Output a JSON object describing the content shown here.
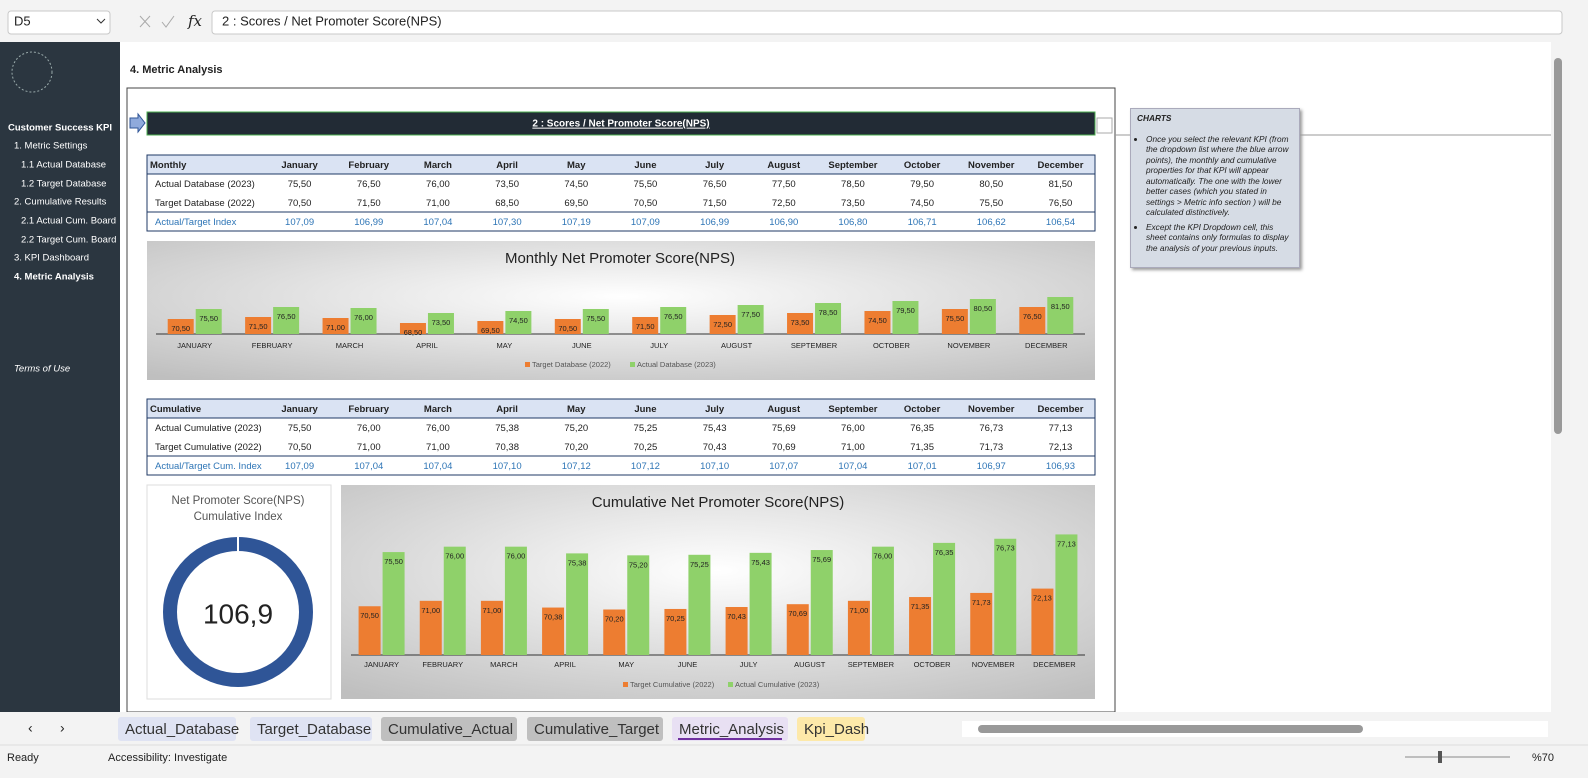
{
  "name_box": "D5",
  "formula_icon": "fx",
  "formula": "2 : Scores / Net Promoter Score(NPS)",
  "sidebar": {
    "title": "Customer Success KPI",
    "items": [
      "1. Metric Settings",
      "1.1 Actual Database",
      "1.2 Target Database",
      "2. Cumulative Results",
      "2.1 Actual Cum. Board",
      "2.2 Target Cum. Board",
      "3. KPI Dashboard",
      "4. Metric Analysis"
    ],
    "footer": "Terms of Use"
  },
  "page_title": "4. Metric Analysis",
  "monthly_table": {
    "header": [
      "Monthly",
      "January",
      "February",
      "March",
      "April",
      "May",
      "June",
      "July",
      "August",
      "September",
      "October",
      "November",
      "December"
    ],
    "rows": [
      [
        "Actual Database (2023)",
        "75,50",
        "76,50",
        "76,00",
        "73,50",
        "74,50",
        "75,50",
        "76,50",
        "77,50",
        "78,50",
        "79,50",
        "80,50",
        "81,50"
      ],
      [
        "Target Database (2022)",
        "70,50",
        "71,50",
        "71,00",
        "68,50",
        "69,50",
        "70,50",
        "71,50",
        "72,50",
        "73,50",
        "74,50",
        "75,50",
        "76,50"
      ],
      [
        "Actual/Target Index",
        "107,09",
        "106,99",
        "107,04",
        "107,30",
        "107,19",
        "107,09",
        "106,99",
        "106,90",
        "106,80",
        "106,71",
        "106,62",
        "106,54"
      ]
    ]
  },
  "monthly_chart": {
    "type": "bar",
    "title": "Monthly Net Promoter Score(NPS)",
    "categories": [
      "JANUARY",
      "FEBRUARY",
      "MARCH",
      "APRIL",
      "MAY",
      "JUNE",
      "JULY",
      "AUGUST",
      "SEPTEMBER",
      "OCTOBER",
      "NOVEMBER",
      "DECEMBER"
    ],
    "ylim": [
      63,
      83
    ],
    "series": [
      {
        "name": "Target Database (2022)",
        "color": "#ed7d31",
        "values": [
          70.5,
          71.5,
          71,
          68.5,
          69.5,
          70.5,
          71.5,
          72.5,
          73.5,
          74.5,
          75.5,
          76.5
        ],
        "value_labels": [
          "70,50",
          "71,50",
          "71,00",
          "68,50",
          "69,50",
          "70,50",
          "71,50",
          "72,50",
          "73,50",
          "74,50",
          "75,50",
          "76,50"
        ]
      },
      {
        "name": "Actual Database (2023)",
        "color": "#8fd16a",
        "values": [
          75.5,
          76.5,
          76,
          73.5,
          74.5,
          75.5,
          76.5,
          77.5,
          78.5,
          79.5,
          80.5,
          81.5
        ],
        "value_labels": [
          "75,50",
          "76,50",
          "76,00",
          "73,50",
          "74,50",
          "75,50",
          "76,50",
          "77,50",
          "78,50",
          "79,50",
          "80,50",
          "81,50"
        ]
      }
    ]
  },
  "cumulative_table": {
    "header": [
      "Cumulative",
      "January",
      "February",
      "March",
      "April",
      "May",
      "June",
      "July",
      "August",
      "September",
      "October",
      "November",
      "December"
    ],
    "rows": [
      [
        "Actual Cumulative (2023)",
        "75,50",
        "76,00",
        "76,00",
        "75,38",
        "75,20",
        "75,25",
        "75,43",
        "75,69",
        "76,00",
        "76,35",
        "76,73",
        "77,13"
      ],
      [
        "Target Cumulative (2022)",
        "70,50",
        "71,00",
        "71,00",
        "70,38",
        "70,20",
        "70,25",
        "70,43",
        "70,69",
        "71,00",
        "71,35",
        "71,73",
        "72,13"
      ],
      [
        "Actual/Target Cum. Index",
        "107,09",
        "107,04",
        "107,04",
        "107,10",
        "107,12",
        "107,12",
        "107,10",
        "107,07",
        "107,04",
        "107,01",
        "106,97",
        "106,93"
      ]
    ]
  },
  "index_chart": {
    "type": "donut",
    "title": [
      "Net Promoter Score(NPS)",
      "Cumulative Index"
    ],
    "value": 106.9,
    "value_label": "106,9",
    "color": "#2f5597"
  },
  "cumulative_chart": {
    "type": "bar",
    "title": "Cumulative Net Promoter Score(NPS)",
    "categories": [
      "JANUARY",
      "FEBRUARY",
      "MARCH",
      "APRIL",
      "MAY",
      "JUNE",
      "JULY",
      "AUGUST",
      "SEPTEMBER",
      "OCTOBER",
      "NOVEMBER",
      "DECEMBER"
    ],
    "ylim": [
      66,
      78
    ],
    "series": [
      {
        "name": "Target Cumulative (2022)",
        "color": "#ed7d31",
        "values": [
          70.5,
          71,
          71,
          70.38,
          70.2,
          70.25,
          70.43,
          70.69,
          71,
          71.35,
          71.73,
          72.13
        ],
        "value_labels": [
          "70,50",
          "71,00",
          "71,00",
          "70,38",
          "70,20",
          "70,25",
          "70,43",
          "70,69",
          "71,00",
          "71,35",
          "71,73",
          "72,13"
        ]
      },
      {
        "name": "Actual Cumulative (2023)",
        "color": "#8fd16a",
        "values": [
          75.5,
          76,
          76,
          75.38,
          75.2,
          75.25,
          75.43,
          75.69,
          76,
          76.35,
          76.73,
          77.13
        ],
        "value_labels": [
          "75,50",
          "76,00",
          "76,00",
          "75,38",
          "75,20",
          "75,25",
          "75,43",
          "75,69",
          "76,00",
          "76,35",
          "76,73",
          "77,13"
        ]
      }
    ]
  },
  "notes": {
    "title": "CHARTS",
    "bullets": [
      "Once you select the relevant KPI (from the dropdown list where the blue arrow points), the monthly and cumulative properties for that KPI will appear automatically. The one with the lower better cases (which you stated in settings > Metric info section ) will be calculated distinctively.",
      "Except the KPI Dropdown cell, this sheet contains only formulas to display the analysis of your previous inputs."
    ]
  },
  "sheet_tabs": [
    "Actual_Database",
    "Target_Database",
    "Cumulative_Actual",
    "Cumulative_Target",
    "Metric_Analysis",
    "Kpi_Dash"
  ],
  "status": {
    "ready": "Ready",
    "accessibility": "Accessibility: Investigate",
    "zoom": "%70"
  }
}
